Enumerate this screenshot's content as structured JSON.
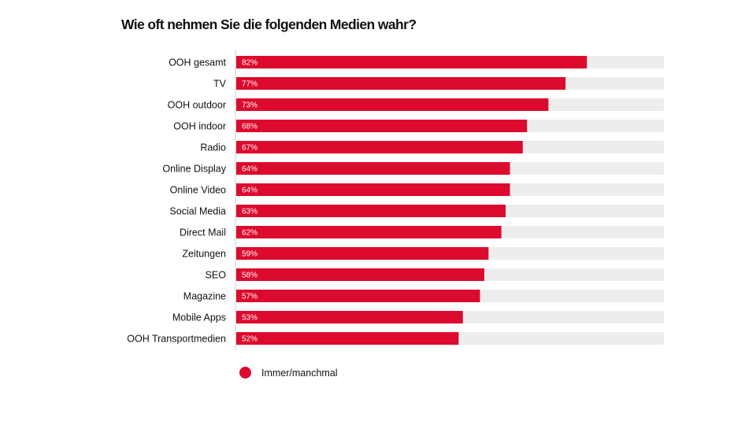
{
  "chart_data": {
    "type": "bar",
    "orientation": "horizontal",
    "title": "Wie oft nehmen Sie die folgenden Medien wahr?",
    "xlabel": "",
    "ylabel": "",
    "xlim": [
      0,
      100
    ],
    "grid": false,
    "legend_position": "bottom-left",
    "categories": [
      "OOH gesamt",
      "TV",
      "OOH outdoor",
      "OOH indoor",
      "Radio",
      "Online Display",
      "Online Video",
      "Social Media",
      "Direct Mail",
      "Zeitungen",
      "SEO",
      "Magazine",
      "Mobile Apps",
      "OOH Transportmedien"
    ],
    "series": [
      {
        "name": "Immer/manchmal",
        "color": "#dc0a2d",
        "values": [
          82,
          77,
          73,
          68,
          67,
          64,
          64,
          63,
          62,
          59,
          58,
          57,
          53,
          52
        ],
        "labels": [
          "82%",
          "77%",
          "73%",
          "68%",
          "67%",
          "64%",
          "64%",
          "63%",
          "62%",
          "59%",
          "58%",
          "57%",
          "53%",
          "52%"
        ]
      }
    ],
    "track_color": "#ededed",
    "axis_color": "#cccccc"
  }
}
